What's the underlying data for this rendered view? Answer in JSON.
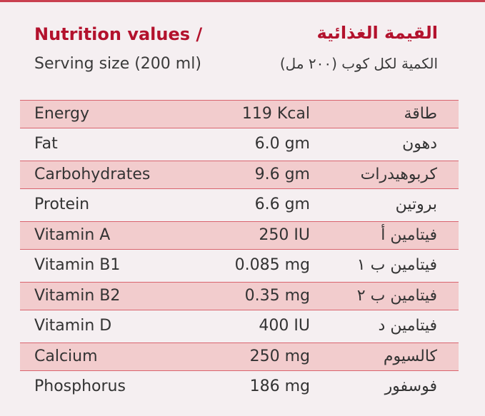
{
  "header": {
    "title_en": "Nutrition values /",
    "title_ar": "القيمة الغذائية",
    "serving_en": "Serving size (200 ml)",
    "serving_ar": "الكمية لكل كوب (٢٠٠ مل)"
  },
  "table": {
    "rows": [
      [
        "Energy",
        "119 Kcal",
        "طاقة"
      ],
      [
        "Fat",
        "6.0 gm",
        "دهون"
      ],
      [
        "Carbohydrates",
        "9.6 gm",
        "كربوهيدرات"
      ],
      [
        "Protein",
        "6.6 gm",
        "بروتين"
      ],
      [
        "Vitamin A",
        "250 IU",
        "فيتامين أ"
      ],
      [
        "Vitamin B1",
        "0.085 mg",
        "فيتامين ب ١"
      ],
      [
        "Vitamin B2",
        "0.35 mg",
        "فيتامين ب ٢"
      ],
      [
        "Vitamin D",
        "400 IU",
        "فيتامين د"
      ],
      [
        "Calcium",
        "250 mg",
        "كالسيوم"
      ],
      [
        "Phosphorus",
        "186 mg",
        "فوسفور"
      ]
    ]
  }
}
